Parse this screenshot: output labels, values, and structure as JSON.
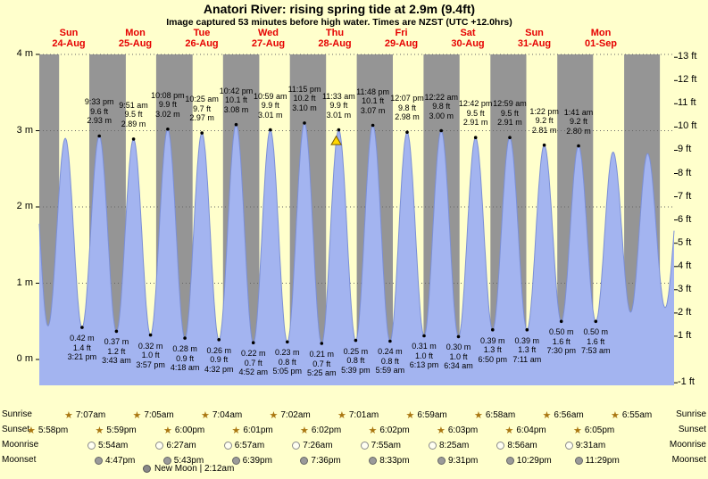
{
  "title": "Anatori River: rising  spring tide at 2.9m (9.4ft)",
  "subtitle": "Image captured 53 minutes before high water. Times are NZST (UTC +12.0hrs)",
  "colors": {
    "day": "#ffffcc",
    "night": "#959595",
    "tide_fill": "#a3b4f0",
    "tide_stroke": "#7b8fd6",
    "day_label": "#e60000",
    "marker": "#ffd700"
  },
  "chart_data": {
    "type": "area",
    "title": "Anatori River tide height curve",
    "x_range_hours": [
      0,
      228
    ],
    "y_left": {
      "unit": "m",
      "ticks": [
        {
          "label": "4 m",
          "value": 4
        },
        {
          "label": "3 m",
          "value": 3
        },
        {
          "label": "2 m",
          "value": 2
        },
        {
          "label": "1 m",
          "value": 1
        },
        {
          "label": "0 m",
          "value": 0
        }
      ]
    },
    "y_right": {
      "unit": "ft",
      "ticks": [
        {
          "label": "13 ft",
          "value": 13
        },
        {
          "label": "12 ft",
          "value": 12
        },
        {
          "label": "11 ft",
          "value": 11
        },
        {
          "label": "10 ft",
          "value": 10
        },
        {
          "label": "9 ft",
          "value": 9
        },
        {
          "label": "8 ft",
          "value": 8
        },
        {
          "label": "7 ft",
          "value": 7
        },
        {
          "label": "6 ft",
          "value": 6
        },
        {
          "label": "5 ft",
          "value": 5
        },
        {
          "label": "4 ft",
          "value": 4
        },
        {
          "label": "3 ft",
          "value": 3
        },
        {
          "label": "2 ft",
          "value": 2
        },
        {
          "label": "1 ft",
          "value": 1
        },
        {
          "label": "-1 ft",
          "value": -1
        }
      ]
    },
    "days": [
      {
        "name": "Sun",
        "date": "24-Aug"
      },
      {
        "name": "Mon",
        "date": "25-Aug"
      },
      {
        "name": "Tue",
        "date": "26-Aug"
      },
      {
        "name": "Wed",
        "date": "27-Aug"
      },
      {
        "name": "Thu",
        "date": "28-Aug"
      },
      {
        "name": "Fri",
        "date": "29-Aug"
      },
      {
        "name": "Sat",
        "date": "30-Aug"
      },
      {
        "name": "Sun",
        "date": "31-Aug"
      },
      {
        "name": "Mon",
        "date": "01-Sep"
      }
    ],
    "extremes": [
      {
        "t": -2.87,
        "h": 2.95,
        "type": "high"
      },
      {
        "t": 3.13,
        "h": 0.44,
        "type": "low"
      },
      {
        "t": 9.35,
        "h": 2.9,
        "type": "high"
      },
      {
        "t": 15.35,
        "h": 0.42,
        "type": "low",
        "label": [
          "0.42 m",
          "1.4 ft",
          "3:21 pm"
        ]
      },
      {
        "t": 21.55,
        "h": 2.93,
        "type": "high",
        "label": [
          "9:33 pm",
          "9.6 ft",
          "2.93 m"
        ]
      },
      {
        "t": 27.72,
        "h": 0.37,
        "type": "low",
        "label": [
          "0.37 m",
          "1.2 ft",
          "3:43 am"
        ]
      },
      {
        "t": 33.85,
        "h": 2.89,
        "type": "high",
        "label": [
          "9:51 am",
          "9.5 ft",
          "2.89 m"
        ]
      },
      {
        "t": 39.95,
        "h": 0.32,
        "type": "low",
        "label": [
          "0.32 m",
          "1.0 ft",
          "3:57 pm"
        ]
      },
      {
        "t": 46.13,
        "h": 3.02,
        "type": "high",
        "label": [
          "10:08 pm",
          "9.9 ft",
          "3.02 m"
        ]
      },
      {
        "t": 52.3,
        "h": 0.28,
        "type": "low",
        "label": [
          "0.28 m",
          "0.9 ft",
          "4:18 am"
        ]
      },
      {
        "t": 58.42,
        "h": 2.97,
        "type": "high",
        "label": [
          "10:25 am",
          "9.7 ft",
          "2.97 m"
        ]
      },
      {
        "t": 64.53,
        "h": 0.26,
        "type": "low",
        "label": [
          "0.26 m",
          "0.9 ft",
          "4:32 pm"
        ]
      },
      {
        "t": 70.7,
        "h": 3.08,
        "type": "high",
        "label": [
          "10:42 pm",
          "10.1 ft",
          "3.08 m"
        ]
      },
      {
        "t": 76.87,
        "h": 0.22,
        "type": "low",
        "label": [
          "0.22 m",
          "0.7 ft",
          "4:52 am"
        ]
      },
      {
        "t": 82.98,
        "h": 3.01,
        "type": "high",
        "label": [
          "10:59 am",
          "9.9 ft",
          "3.01 m"
        ]
      },
      {
        "t": 89.08,
        "h": 0.23,
        "type": "low",
        "label": [
          "0.23 m",
          "0.8 ft",
          "5:05 pm"
        ]
      },
      {
        "t": 95.25,
        "h": 3.1,
        "type": "high",
        "label": [
          "11:15 pm",
          "10.2 ft",
          "3.10 m"
        ]
      },
      {
        "t": 101.42,
        "h": 0.21,
        "type": "low",
        "label": [
          "0.21 m",
          "0.7 ft",
          "5:25 am"
        ]
      },
      {
        "t": 107.55,
        "h": 3.01,
        "type": "high",
        "label": [
          "11:33 am",
          "9.9 ft",
          "3.01 m"
        ]
      },
      {
        "t": 113.65,
        "h": 0.25,
        "type": "low",
        "label": [
          "0.25 m",
          "0.8 ft",
          "5:39 pm"
        ]
      },
      {
        "t": 119.8,
        "h": 3.07,
        "type": "high",
        "label": [
          "11:48 pm",
          "10.1 ft",
          "3.07 m"
        ]
      },
      {
        "t": 125.98,
        "h": 0.24,
        "type": "low",
        "label": [
          "0.24 m",
          "0.8 ft",
          "5:59 am"
        ]
      },
      {
        "t": 132.12,
        "h": 2.98,
        "type": "high",
        "label": [
          "12:07 pm",
          "9.8 ft",
          "2.98 m"
        ]
      },
      {
        "t": 138.22,
        "h": 0.31,
        "type": "low",
        "label": [
          "0.31 m",
          "1.0 ft",
          "6:13 pm"
        ]
      },
      {
        "t": 144.37,
        "h": 3.0,
        "type": "high",
        "label": [
          "12:22 am",
          "9.8 ft",
          "3.00 m"
        ]
      },
      {
        "t": 150.57,
        "h": 0.3,
        "type": "low",
        "label": [
          "0.30 m",
          "1.0 ft",
          "6:34 am"
        ]
      },
      {
        "t": 156.7,
        "h": 2.91,
        "type": "high",
        "label": [
          "12:42 pm",
          "9.5 ft",
          "2.91 m"
        ]
      },
      {
        "t": 162.83,
        "h": 0.39,
        "type": "low",
        "label": [
          "0.39 m",
          "1.3 ft",
          "6:50 pm"
        ]
      },
      {
        "t": 168.98,
        "h": 2.91,
        "type": "high",
        "label": [
          "12:59 am",
          "9.5 ft",
          "2.91 m"
        ]
      },
      {
        "t": 175.18,
        "h": 0.39,
        "type": "low",
        "label": [
          "0.39 m",
          "1.3 ft",
          "7:11 am"
        ]
      },
      {
        "t": 181.37,
        "h": 2.81,
        "type": "high",
        "label": [
          "1:22 pm",
          "9.2 ft",
          "2.81 m"
        ]
      },
      {
        "t": 187.5,
        "h": 0.5,
        "type": "low",
        "label": [
          "0.50 m",
          "1.6 ft",
          "7:30 pm"
        ]
      },
      {
        "t": 193.68,
        "h": 2.8,
        "type": "high",
        "label": [
          "1:41 am",
          "9.2 ft",
          "2.80 m"
        ]
      },
      {
        "t": 199.88,
        "h": 0.5,
        "type": "low",
        "label": [
          "0.50 m",
          "1.6 ft",
          "7:53 am"
        ]
      },
      {
        "t": 206.1,
        "h": 2.72,
        "type": "high"
      },
      {
        "t": 212.4,
        "h": 0.62,
        "type": "low"
      },
      {
        "t": 218.5,
        "h": 2.7,
        "type": "high"
      },
      {
        "t": 224.8,
        "h": 0.68,
        "type": "low"
      },
      {
        "t": 231.0,
        "h": 2.6,
        "type": "high"
      }
    ],
    "current_marker": {
      "t": 106.67,
      "h": 2.87
    }
  },
  "astro": {
    "rows": [
      {
        "id": "sunrise",
        "label": "Sunrise",
        "icon": "star",
        "times": [
          "7:07am",
          "7:05am",
          "7:04am",
          "7:02am",
          "7:01am",
          "6:59am",
          "6:58am",
          "6:56am",
          "6:55am"
        ]
      },
      {
        "id": "sunset",
        "label": "Sunset",
        "icon": "star",
        "times": [
          "5:58pm",
          "5:59pm",
          "6:00pm",
          "6:01pm",
          "6:02pm",
          "6:02pm",
          "6:03pm",
          "6:04pm",
          "6:05pm"
        ]
      },
      {
        "id": "moonrise",
        "label": "Moonrise",
        "icon": "moon-light",
        "times": [
          "5:54am",
          "6:27am",
          "6:57am",
          "7:26am",
          "7:55am",
          "8:25am",
          "8:56am",
          "9:31am"
        ]
      },
      {
        "id": "moonset",
        "label": "Moonset",
        "icon": "moon-dark",
        "times": [
          "4:47pm",
          "5:43pm",
          "6:39pm",
          "7:36pm",
          "8:33pm",
          "9:31pm",
          "10:29pm",
          "11:29pm"
        ]
      }
    ],
    "new_moon": "New Moon | 2:12am"
  }
}
